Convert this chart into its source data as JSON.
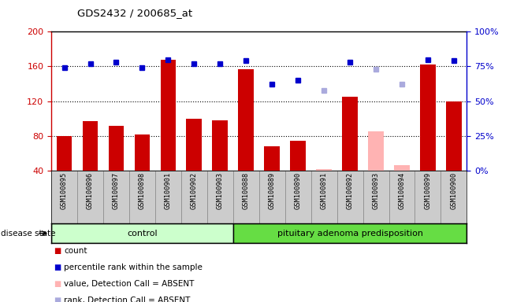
{
  "title": "GDS2432 / 200685_at",
  "samples": [
    "GSM100895",
    "GSM100896",
    "GSM100897",
    "GSM100898",
    "GSM100901",
    "GSM100902",
    "GSM100903",
    "GSM100888",
    "GSM100889",
    "GSM100890",
    "GSM100891",
    "GSM100892",
    "GSM100893",
    "GSM100894",
    "GSM100899",
    "GSM100900"
  ],
  "n_control": 7,
  "n_pit": 9,
  "count_values": [
    80,
    97,
    92,
    82,
    168,
    100,
    98,
    157,
    68,
    74,
    null,
    125,
    null,
    null,
    162,
    120
  ],
  "rank_values": [
    74,
    77,
    78,
    74,
    80,
    77,
    77,
    79,
    62,
    65,
    null,
    78,
    null,
    null,
    80,
    79
  ],
  "absent_count_values": [
    null,
    null,
    null,
    null,
    null,
    null,
    null,
    null,
    null,
    null,
    42,
    null,
    85,
    46,
    null,
    null
  ],
  "absent_rank_values": [
    null,
    null,
    null,
    null,
    null,
    null,
    null,
    null,
    null,
    null,
    58,
    null,
    73,
    62,
    null,
    null
  ],
  "ylim": [
    40,
    200
  ],
  "yticks": [
    40,
    80,
    120,
    160,
    200
  ],
  "y2lim": [
    0,
    100
  ],
  "y2ticks": [
    0,
    25,
    50,
    75,
    100
  ],
  "y2labels": [
    "0%",
    "25%",
    "50%",
    "75%",
    "100%"
  ],
  "bar_color": "#cc0000",
  "absent_bar_color": "#ffb3b3",
  "rank_color": "#0000cc",
  "absent_rank_color": "#aaaadd",
  "group_label_control": "control",
  "group_label_pituitary": "pituitary adenoma predisposition",
  "control_bg": "#ccffcc",
  "pituitary_bg": "#66dd44",
  "tick_bg": "#cccccc",
  "legend_items": [
    {
      "label": "count",
      "color": "#cc0000"
    },
    {
      "label": "percentile rank within the sample",
      "color": "#0000cc"
    },
    {
      "label": "value, Detection Call = ABSENT",
      "color": "#ffb3b3"
    },
    {
      "label": "rank, Detection Call = ABSENT",
      "color": "#aaaadd"
    }
  ]
}
